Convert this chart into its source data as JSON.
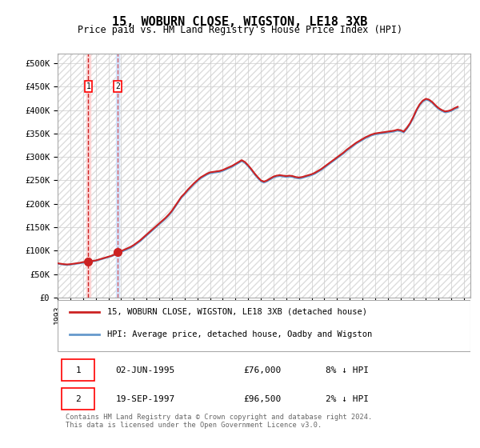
{
  "title": "15, WOBURN CLOSE, WIGSTON, LE18 3XB",
  "subtitle": "Price paid vs. HM Land Registry's House Price Index (HPI)",
  "ylabel_ticks": [
    "£0",
    "£50K",
    "£100K",
    "£150K",
    "£200K",
    "£250K",
    "£300K",
    "£350K",
    "£400K",
    "£450K",
    "£500K"
  ],
  "ylim": [
    0,
    520000
  ],
  "xlim_start": 1993.0,
  "xlim_end": 2025.5,
  "transaction1": {
    "date": 1995.42,
    "price": 76000,
    "label": "1"
  },
  "transaction2": {
    "date": 1997.72,
    "price": 96500,
    "label": "2"
  },
  "legend_line1": "15, WOBURN CLOSE, WIGSTON, LE18 3XB (detached house)",
  "legend_line2": "HPI: Average price, detached house, Oadby and Wigston",
  "table_row1": [
    "1",
    "02-JUN-1995",
    "£76,000",
    "8% ↓ HPI"
  ],
  "table_row2": [
    "2",
    "19-SEP-1997",
    "£96,500",
    "2% ↓ HPI"
  ],
  "footer": "Contains HM Land Registry data © Crown copyright and database right 2024.\nThis data is licensed under the Open Government Licence v3.0.",
  "hpi_color": "#6699cc",
  "price_color": "#cc2222",
  "marker_color": "#cc2222",
  "shading_color": "#ddddff",
  "hatch_color": "#cccccc",
  "background_hatch": "////",
  "hpi_data_x": [
    1993.0,
    1993.25,
    1993.5,
    1993.75,
    1994.0,
    1994.25,
    1994.5,
    1994.75,
    1995.0,
    1995.25,
    1995.5,
    1995.75,
    1996.0,
    1996.25,
    1996.5,
    1996.75,
    1997.0,
    1997.25,
    1997.5,
    1997.75,
    1998.0,
    1998.25,
    1998.5,
    1998.75,
    1999.0,
    1999.25,
    1999.5,
    1999.75,
    2000.0,
    2000.25,
    2000.5,
    2000.75,
    2001.0,
    2001.25,
    2001.5,
    2001.75,
    2002.0,
    2002.25,
    2002.5,
    2002.75,
    2003.0,
    2003.25,
    2003.5,
    2003.75,
    2004.0,
    2004.25,
    2004.5,
    2004.75,
    2005.0,
    2005.25,
    2005.5,
    2005.75,
    2006.0,
    2006.25,
    2006.5,
    2006.75,
    2007.0,
    2007.25,
    2007.5,
    2007.75,
    2008.0,
    2008.25,
    2008.5,
    2008.75,
    2009.0,
    2009.25,
    2009.5,
    2009.75,
    2010.0,
    2010.25,
    2010.5,
    2010.75,
    2011.0,
    2011.25,
    2011.5,
    2011.75,
    2012.0,
    2012.25,
    2012.5,
    2012.75,
    2013.0,
    2013.25,
    2013.5,
    2013.75,
    2014.0,
    2014.25,
    2014.5,
    2014.75,
    2015.0,
    2015.25,
    2015.5,
    2015.75,
    2016.0,
    2016.25,
    2016.5,
    2016.75,
    2017.0,
    2017.25,
    2017.5,
    2017.75,
    2018.0,
    2018.25,
    2018.5,
    2018.75,
    2019.0,
    2019.25,
    2019.5,
    2019.75,
    2020.0,
    2020.25,
    2020.5,
    2020.75,
    2021.0,
    2021.25,
    2021.5,
    2021.75,
    2022.0,
    2022.25,
    2022.5,
    2022.75,
    2023.0,
    2023.25,
    2023.5,
    2023.75,
    2024.0,
    2024.25,
    2024.5
  ],
  "hpi_data_y": [
    72000,
    71000,
    70000,
    69500,
    70000,
    71000,
    72000,
    73000,
    74000,
    75000,
    76000,
    77000,
    78000,
    80000,
    82000,
    84000,
    86000,
    88000,
    91000,
    94000,
    97000,
    100000,
    103000,
    106000,
    110000,
    115000,
    120000,
    126000,
    132000,
    138000,
    144000,
    150000,
    156000,
    162000,
    168000,
    175000,
    183000,
    193000,
    203000,
    213000,
    220000,
    228000,
    235000,
    242000,
    248000,
    254000,
    258000,
    262000,
    265000,
    266000,
    267000,
    268000,
    270000,
    273000,
    276000,
    279000,
    283000,
    287000,
    291000,
    287000,
    280000,
    272000,
    263000,
    255000,
    248000,
    245000,
    248000,
    252000,
    256000,
    258000,
    259000,
    258000,
    257000,
    258000,
    257000,
    255000,
    254000,
    255000,
    257000,
    259000,
    261000,
    264000,
    268000,
    272000,
    277000,
    282000,
    287000,
    292000,
    297000,
    302000,
    307000,
    313000,
    318000,
    323000,
    328000,
    332000,
    336000,
    340000,
    343000,
    346000,
    348000,
    349000,
    350000,
    351000,
    352000,
    353000,
    354000,
    356000,
    355000,
    352000,
    360000,
    370000,
    383000,
    398000,
    410000,
    418000,
    422000,
    420000,
    415000,
    408000,
    402000,
    398000,
    395000,
    396000,
    398000,
    402000,
    405000
  ],
  "price_data_x": [
    1993.0,
    1993.25,
    1993.5,
    1993.75,
    1994.0,
    1994.25,
    1994.5,
    1994.75,
    1995.0,
    1995.25,
    1995.5,
    1995.75,
    1996.0,
    1996.25,
    1996.5,
    1996.75,
    1997.0,
    1997.25,
    1997.5,
    1997.75,
    1998.0,
    1998.25,
    1998.5,
    1998.75,
    1999.0,
    1999.25,
    1999.5,
    1999.75,
    2000.0,
    2000.25,
    2000.5,
    2000.75,
    2001.0,
    2001.25,
    2001.5,
    2001.75,
    2002.0,
    2002.25,
    2002.5,
    2002.75,
    2003.0,
    2003.25,
    2003.5,
    2003.75,
    2004.0,
    2004.25,
    2004.5,
    2004.75,
    2005.0,
    2005.25,
    2005.5,
    2005.75,
    2006.0,
    2006.25,
    2006.5,
    2006.75,
    2007.0,
    2007.25,
    2007.5,
    2007.75,
    2008.0,
    2008.25,
    2008.5,
    2008.75,
    2009.0,
    2009.25,
    2009.5,
    2009.75,
    2010.0,
    2010.25,
    2010.5,
    2010.75,
    2011.0,
    2011.25,
    2011.5,
    2011.75,
    2012.0,
    2012.25,
    2012.5,
    2012.75,
    2013.0,
    2013.25,
    2013.5,
    2013.75,
    2014.0,
    2014.25,
    2014.5,
    2014.75,
    2015.0,
    2015.25,
    2015.5,
    2015.75,
    2016.0,
    2016.25,
    2016.5,
    2016.75,
    2017.0,
    2017.25,
    2017.5,
    2017.75,
    2018.0,
    2018.25,
    2018.5,
    2018.75,
    2019.0,
    2019.25,
    2019.5,
    2019.75,
    2020.0,
    2020.25,
    2020.5,
    2020.75,
    2021.0,
    2021.25,
    2021.5,
    2021.75,
    2022.0,
    2022.25,
    2022.5,
    2022.75,
    2023.0,
    2023.25,
    2023.5,
    2023.75,
    2024.0,
    2024.25,
    2024.5
  ],
  "price_data_y": [
    73000,
    72000,
    71000,
    70500,
    71000,
    72000,
    73000,
    74000,
    75500,
    76000,
    77000,
    78000,
    79000,
    81000,
    83000,
    85000,
    87000,
    89000,
    92000,
    96500,
    99000,
    102000,
    105000,
    108000,
    112000,
    117000,
    122000,
    128000,
    134000,
    140000,
    146000,
    152000,
    158000,
    164000,
    170000,
    177000,
    185000,
    195000,
    205000,
    215000,
    222000,
    230000,
    237000,
    244000,
    250000,
    256000,
    260000,
    264000,
    267000,
    268000,
    269000,
    270000,
    272000,
    275000,
    278000,
    281000,
    285000,
    289000,
    293000,
    289000,
    282000,
    274000,
    265000,
    257000,
    250000,
    247000,
    250000,
    254000,
    258000,
    260000,
    261000,
    260000,
    259000,
    260000,
    259000,
    257000,
    256000,
    257000,
    259000,
    261000,
    263000,
    266000,
    270000,
    274000,
    279000,
    284000,
    289000,
    294000,
    299000,
    304000,
    309000,
    315000,
    320000,
    325000,
    330000,
    334000,
    338000,
    342000,
    345000,
    348000,
    350000,
    351000,
    352000,
    353000,
    354000,
    355000,
    356000,
    358000,
    357000,
    354000,
    362000,
    372000,
    385000,
    400000,
    412000,
    420000,
    424000,
    422000,
    417000,
    410000,
    404000,
    400000,
    397000,
    398000,
    400000,
    404000,
    407000
  ]
}
